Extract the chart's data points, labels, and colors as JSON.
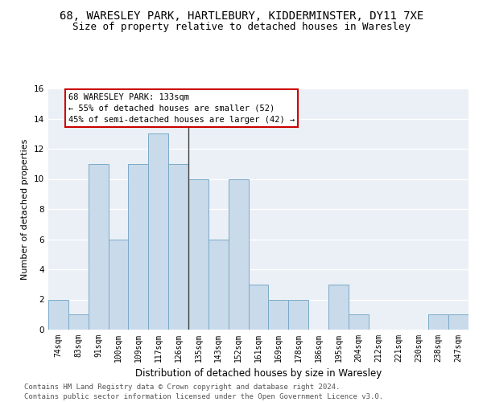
{
  "title1": "68, WARESLEY PARK, HARTLEBURY, KIDDERMINSTER, DY11 7XE",
  "title2": "Size of property relative to detached houses in Waresley",
  "xlabel": "Distribution of detached houses by size in Waresley",
  "ylabel": "Number of detached properties",
  "categories": [
    "74sqm",
    "83sqm",
    "91sqm",
    "100sqm",
    "109sqm",
    "117sqm",
    "126sqm",
    "135sqm",
    "143sqm",
    "152sqm",
    "161sqm",
    "169sqm",
    "178sqm",
    "186sqm",
    "195sqm",
    "204sqm",
    "212sqm",
    "221sqm",
    "230sqm",
    "238sqm",
    "247sqm"
  ],
  "values": [
    2,
    1,
    11,
    6,
    11,
    13,
    11,
    10,
    6,
    10,
    3,
    2,
    2,
    0,
    3,
    1,
    0,
    0,
    0,
    1,
    1
  ],
  "bar_color": "#c9daea",
  "bar_edge_color": "#7aaac8",
  "annotation_text": "68 WARESLEY PARK: 133sqm\n← 55% of detached houses are smaller (52)\n45% of semi-detached houses are larger (42) →",
  "annotation_box_color": "#ffffff",
  "annotation_border_color": "#cc0000",
  "vline_x": 6.5,
  "ylim": [
    0,
    16
  ],
  "yticks": [
    0,
    2,
    4,
    6,
    8,
    10,
    12,
    14,
    16
  ],
  "footer1": "Contains HM Land Registry data © Crown copyright and database right 2024.",
  "footer2": "Contains public sector information licensed under the Open Government Licence v3.0.",
  "bg_color": "#eaf0f6",
  "grid_color": "#ffffff",
  "title1_fontsize": 10,
  "title2_fontsize": 9,
  "xlabel_fontsize": 8.5,
  "ylabel_fontsize": 8,
  "tick_fontsize": 7,
  "annotation_fontsize": 7.5,
  "footer_fontsize": 6.5
}
